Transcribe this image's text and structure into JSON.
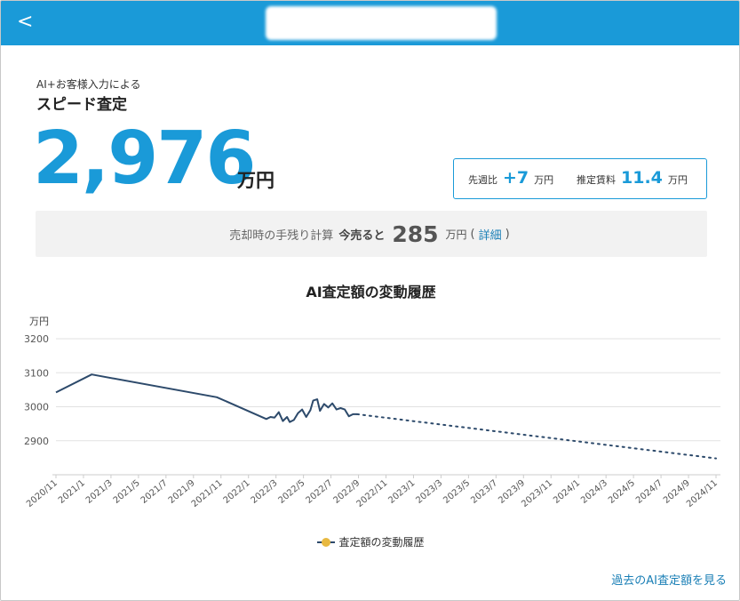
{
  "header": {
    "back_label": "<",
    "back_icon": "chevron-left-icon",
    "accent": "#1a9ad8"
  },
  "estimate": {
    "pre_label": "AI+お客様入力による",
    "label": "スピード査定",
    "value": "2,976",
    "unit": "万円"
  },
  "stats": {
    "weekly_label": "先週比",
    "weekly_value": "+7",
    "weekly_unit": "万円",
    "rent_label": "推定賃料",
    "rent_value": "11.4",
    "rent_unit": "万円"
  },
  "calc": {
    "label": "売却時の手残り計算",
    "sell_label": "今売ると",
    "value": "285",
    "unit": "万円",
    "paren_open": "(",
    "link_label": "詳細",
    "paren_close": ")"
  },
  "chart_title": "AI査定額の変動履歴",
  "chart_data": {
    "type": "line",
    "title": "AI査定額の変動履歴",
    "ylabel": "万円",
    "ylim": [
      2800,
      3200
    ],
    "yticks": [
      2900,
      3000,
      3100,
      3200
    ],
    "xticks": [
      "2020/11",
      "2021/1",
      "2021/3",
      "2021/5",
      "2021/7",
      "2021/9",
      "2021/11",
      "2022/1",
      "2022/3",
      "2022/5",
      "2022/7",
      "2022/9",
      "2022/11",
      "2023/1",
      "2023/3",
      "2023/5",
      "2023/7",
      "2023/9",
      "2023/11",
      "2024/1",
      "2024/3",
      "2024/5",
      "2024/7",
      "2024/9",
      "2024/11"
    ],
    "grid": true,
    "legend_position": "bottom",
    "series": [
      {
        "name": "査定額の変動履歴",
        "color": "#2d4a6b",
        "marker_color": "#e8b941",
        "style": "solid",
        "points": [
          [
            0.0,
            3042
          ],
          [
            2.6,
            3095
          ],
          [
            11.7,
            3028
          ],
          [
            15.3,
            2964
          ],
          [
            15.6,
            2970
          ],
          [
            15.9,
            2968
          ],
          [
            16.2,
            2984
          ],
          [
            16.5,
            2958
          ],
          [
            16.8,
            2970
          ],
          [
            17.0,
            2955
          ],
          [
            17.3,
            2961
          ],
          [
            17.6,
            2981
          ],
          [
            17.9,
            2992
          ],
          [
            18.2,
            2970
          ],
          [
            18.5,
            2990
          ],
          [
            18.7,
            3018
          ],
          [
            19.0,
            3022
          ],
          [
            19.2,
            2988
          ],
          [
            19.5,
            3008
          ],
          [
            19.8,
            2998
          ],
          [
            20.1,
            3010
          ],
          [
            20.4,
            2992
          ],
          [
            20.7,
            2996
          ],
          [
            21.0,
            2992
          ],
          [
            21.3,
            2972
          ],
          [
            21.6,
            2978
          ],
          [
            21.9,
            2978
          ]
        ]
      },
      {
        "name": "",
        "color": "#2d4a6b",
        "style": "dotted",
        "points": [
          [
            21.9,
            2978
          ],
          [
            48.0,
            2848
          ]
        ]
      }
    ]
  },
  "history_link": "過去のAI査定額を見る"
}
